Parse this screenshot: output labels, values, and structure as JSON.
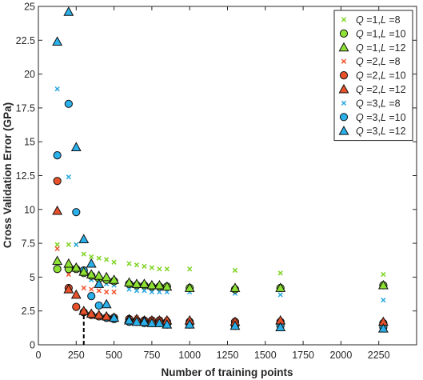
{
  "chart_data": {
    "type": "scatter",
    "title": "",
    "xlabel": "Number of training points",
    "ylabel": "Cross Validation Error (GPa)",
    "xlim": [
      0,
      2500
    ],
    "ylim": [
      0,
      25
    ],
    "xticks": [
      0,
      250,
      500,
      750,
      1000,
      1250,
      1500,
      1750,
      2000,
      2250
    ],
    "xtick_labels": [
      "0",
      "250",
      "500",
      "750",
      "1000",
      "1250",
      "1500",
      "1750",
      "2000",
      "2250"
    ],
    "yticks": [
      0,
      2.5,
      5,
      7.5,
      10,
      12.5,
      15,
      17.5,
      20,
      22.5,
      25
    ],
    "ytick_labels": [
      "0",
      "2.5",
      "5",
      "7.5",
      "10",
      "12.5",
      "15",
      "17.5",
      "20",
      "22.5",
      "25"
    ],
    "grid": false,
    "legend_position": "top-right",
    "marker_line_x": 300,
    "marker_line_ymax": 2.2,
    "series": [
      {
        "name": "Q =1, L =8",
        "q": "1",
        "l": "8",
        "marker": "x",
        "color": "#7ed321",
        "x": [
          125,
          200,
          250,
          300,
          350,
          400,
          450,
          500,
          600,
          650,
          700,
          750,
          800,
          850,
          1000,
          1300,
          1600,
          2280
        ],
        "y": [
          7.4,
          7.4,
          7.4,
          6.7,
          6.5,
          6.4,
          6.3,
          6.1,
          6.0,
          5.9,
          5.8,
          5.7,
          5.6,
          5.6,
          5.6,
          5.5,
          5.3,
          5.2
        ]
      },
      {
        "name": "Q =1, L =10",
        "q": "1",
        "l": "10",
        "marker": "circle",
        "color": "#8ee234",
        "x": [
          125,
          200,
          250,
          300,
          350,
          400,
          450,
          500,
          600,
          650,
          700,
          750,
          800,
          850,
          1000,
          1300,
          1600,
          2280
        ],
        "y": [
          5.6,
          5.6,
          5.6,
          5.3,
          5.1,
          4.9,
          4.8,
          4.7,
          4.5,
          4.4,
          4.4,
          4.3,
          4.3,
          4.3,
          4.2,
          4.1,
          4.2,
          4.4
        ]
      },
      {
        "name": "Q =1, L =12",
        "q": "1",
        "l": "12",
        "marker": "triangle",
        "color": "#8ee234",
        "x": [
          125,
          200,
          250,
          300,
          350,
          400,
          450,
          500,
          600,
          650,
          700,
          750,
          800,
          850,
          1000,
          1300,
          1600,
          2280
        ],
        "y": [
          6.2,
          6.0,
          5.7,
          5.4,
          5.2,
          5.1,
          5.0,
          4.8,
          4.6,
          4.5,
          4.5,
          4.4,
          4.4,
          4.3,
          4.2,
          4.2,
          4.2,
          4.4
        ]
      },
      {
        "name": "Q =2, L =8",
        "q": "2",
        "l": "8",
        "marker": "x",
        "color": "#f0522c",
        "x": [
          125,
          200,
          300,
          350,
          400,
          450,
          500,
          600,
          650,
          700,
          750,
          800,
          850,
          1000,
          1300,
          1600,
          2280
        ],
        "y": [
          7.1,
          5.2,
          4.2,
          4.1,
          4.0,
          3.9,
          3.9,
          2.0,
          2.0,
          1.9,
          1.9,
          1.9,
          1.9,
          1.8,
          1.8,
          1.7,
          1.7
        ]
      },
      {
        "name": "Q =2, L =10",
        "q": "2",
        "l": "10",
        "marker": "circle",
        "color": "#e8512a",
        "x": [
          125,
          200,
          250,
          300,
          350,
          400,
          450,
          500,
          600,
          650,
          700,
          750,
          800,
          850,
          1000,
          1300,
          1600,
          2280
        ],
        "y": [
          12.1,
          4.2,
          2.8,
          2.4,
          2.2,
          2.1,
          2.0,
          2.0,
          1.9,
          1.8,
          1.8,
          1.8,
          1.8,
          1.7,
          1.7,
          1.7,
          1.7,
          1.6
        ]
      },
      {
        "name": "Q =2, L =12",
        "q": "2",
        "l": "12",
        "marker": "triangle",
        "color": "#e8512a",
        "x": [
          125,
          200,
          250,
          300,
          350,
          400,
          450,
          500,
          600,
          650,
          700,
          750,
          800,
          850,
          1000,
          1300,
          1600,
          2280
        ],
        "y": [
          9.9,
          4.1,
          3.7,
          2.5,
          2.3,
          2.2,
          2.1,
          2.0,
          1.9,
          1.9,
          1.8,
          1.8,
          1.8,
          1.8,
          1.8,
          1.7,
          1.8,
          1.7
        ]
      },
      {
        "name": "Q =3, L =8",
        "q": "3",
        "l": "8",
        "marker": "x",
        "color": "#29a8e0",
        "x": [
          125,
          200,
          250,
          300,
          350,
          400,
          450,
          500,
          600,
          650,
          700,
          750,
          800,
          850,
          1000,
          1300,
          1600,
          2280
        ],
        "y": [
          18.9,
          12.4,
          7.4,
          5.4,
          4.8,
          4.6,
          4.5,
          4.4,
          4.1,
          4.0,
          4.0,
          3.9,
          3.9,
          3.9,
          3.9,
          3.8,
          3.7,
          3.3
        ]
      },
      {
        "name": "Q =3, L =10",
        "q": "3",
        "l": "10",
        "marker": "circle",
        "color": "#2ab0ea",
        "x": [
          125,
          200,
          250,
          300,
          350,
          400,
          450,
          500,
          600,
          650,
          700,
          750,
          800,
          850,
          1000,
          1300,
          1600,
          2280
        ],
        "y": [
          14.0,
          17.8,
          9.8,
          5.5,
          3.6,
          2.9,
          2.0,
          1.9,
          1.7,
          1.7,
          1.6,
          1.6,
          1.6,
          1.5,
          1.5,
          1.4,
          1.4,
          1.3
        ]
      },
      {
        "name": "Q =3, L =12",
        "q": "3",
        "l": "12",
        "marker": "triangle",
        "color": "#2ab0ea",
        "x": [
          125,
          200,
          250,
          300,
          350,
          400,
          450,
          500,
          600,
          650,
          700,
          750,
          800,
          850,
          1000,
          1300,
          1600,
          2280
        ],
        "y": [
          22.4,
          24.6,
          14.6,
          7.8,
          6.0,
          4.5,
          3.0,
          2.0,
          1.8,
          1.7,
          1.7,
          1.6,
          1.6,
          1.5,
          1.5,
          1.4,
          1.3,
          1.2
        ]
      }
    ]
  }
}
